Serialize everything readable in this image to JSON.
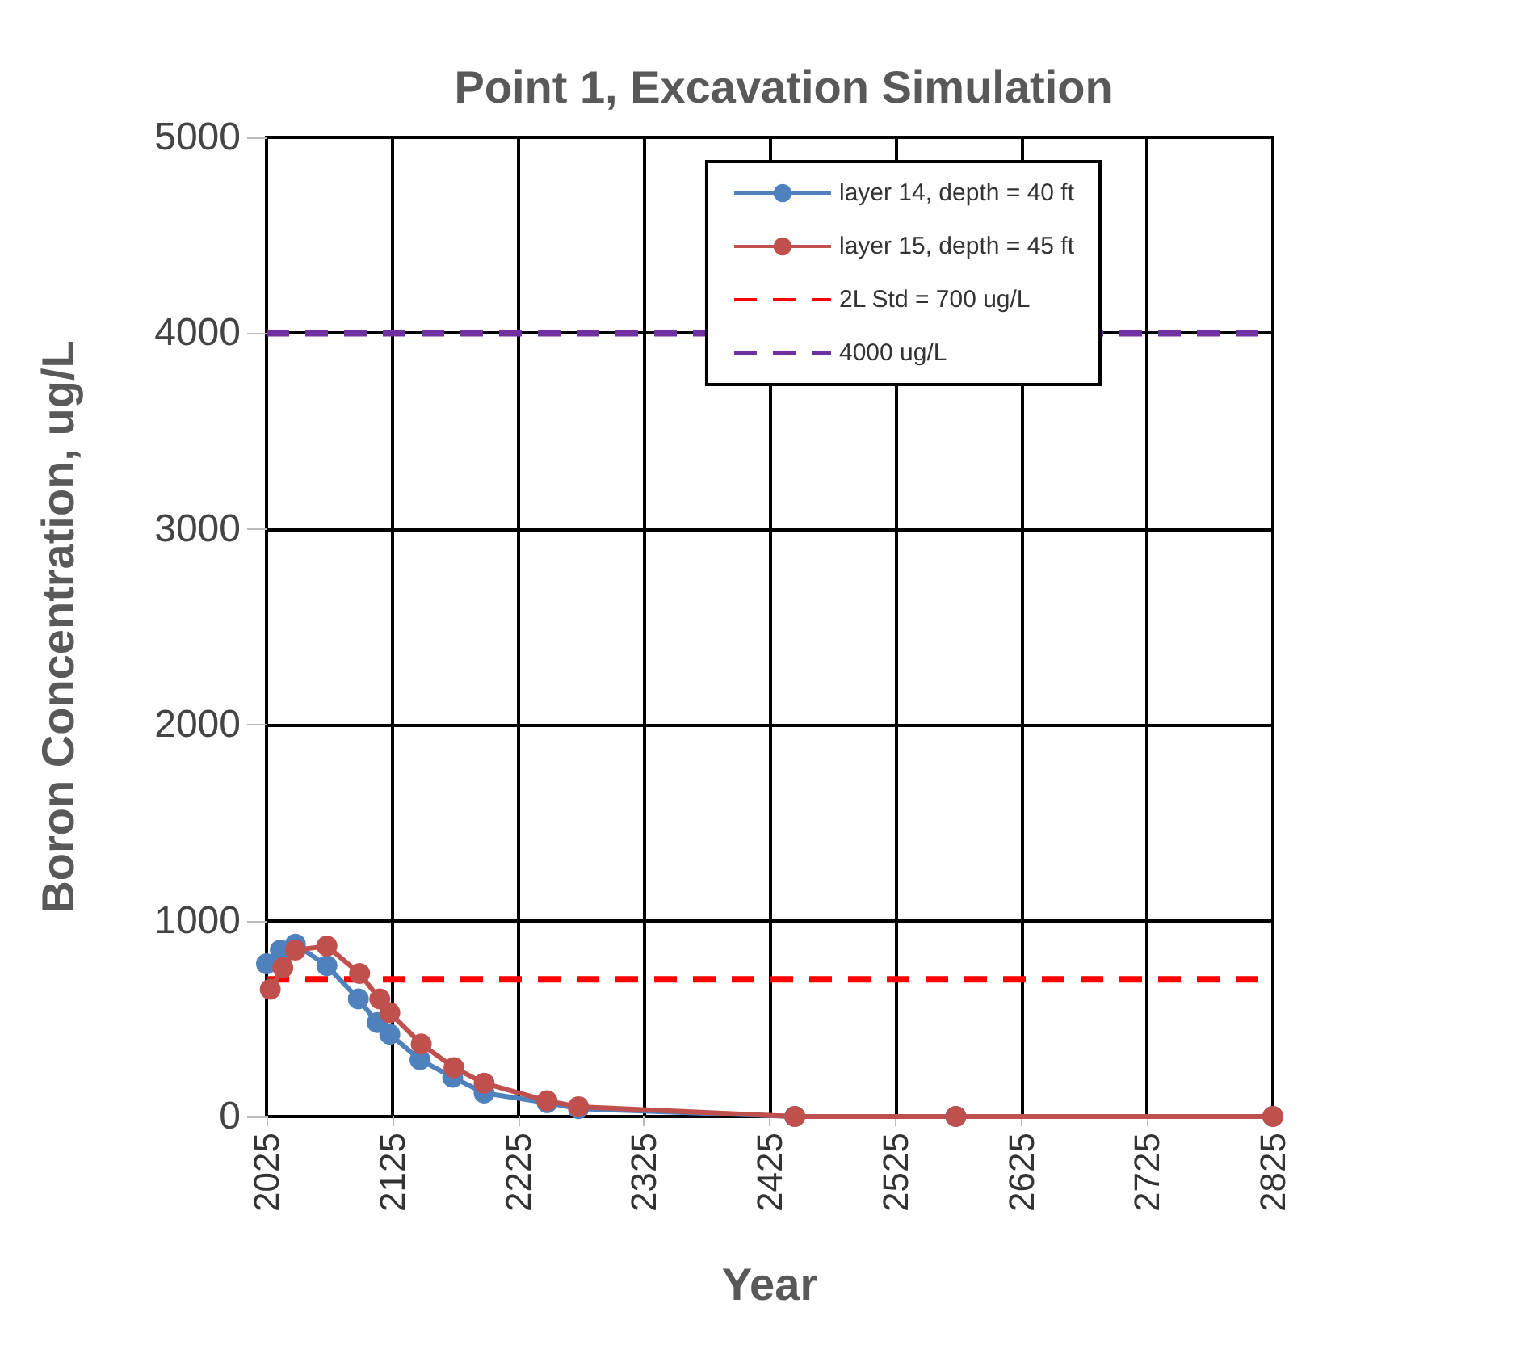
{
  "chart_data": {
    "type": "line",
    "title": "Point 1, Excavation Simulation",
    "xlabel": "Year",
    "ylabel": "Boron Concentration, ug/L",
    "xlim": [
      2025,
      2825
    ],
    "xticks": [
      2025,
      2125,
      2225,
      2325,
      2425,
      2525,
      2625,
      2725,
      2825
    ],
    "ylim": [
      0,
      5000
    ],
    "yticks": [
      0,
      1000,
      2000,
      3000,
      4000,
      5000
    ],
    "grid": true,
    "legend": "top right",
    "marker": "circle",
    "line_style": "solid",
    "series": [
      {
        "name": "layer 14, depth = 40 ft",
        "color": "#4f81bd",
        "x": [
          2025,
          2036,
          2048,
          2073,
          2098,
          2113,
          2123,
          2147,
          2173,
          2198,
          2248,
          2273,
          2445,
          2573,
          2825
        ],
        "values": [
          780,
          850,
          880,
          770,
          600,
          480,
          420,
          290,
          200,
          120,
          70,
          40,
          0,
          0,
          0
        ]
      },
      {
        "name": "layer 15, depth = 45 ft",
        "color": "#c0504d",
        "x": [
          2028,
          2038,
          2048,
          2073,
          2099,
          2115,
          2123,
          2148,
          2174,
          2198,
          2248,
          2273,
          2445,
          2573,
          2825
        ],
        "values": [
          650,
          760,
          850,
          870,
          730,
          600,
          530,
          370,
          250,
          170,
          80,
          50,
          0,
          0,
          0
        ]
      }
    ],
    "ref_lines": [
      {
        "axis": "y",
        "value": 700,
        "label": "2L Std = 700 ug/L",
        "color": "#ff0000",
        "line_style": "dashed"
      },
      {
        "axis": "y",
        "value": 4000,
        "label": "4000 ug/L",
        "color": "#7030a0",
        "line_style": "dashed"
      }
    ]
  }
}
